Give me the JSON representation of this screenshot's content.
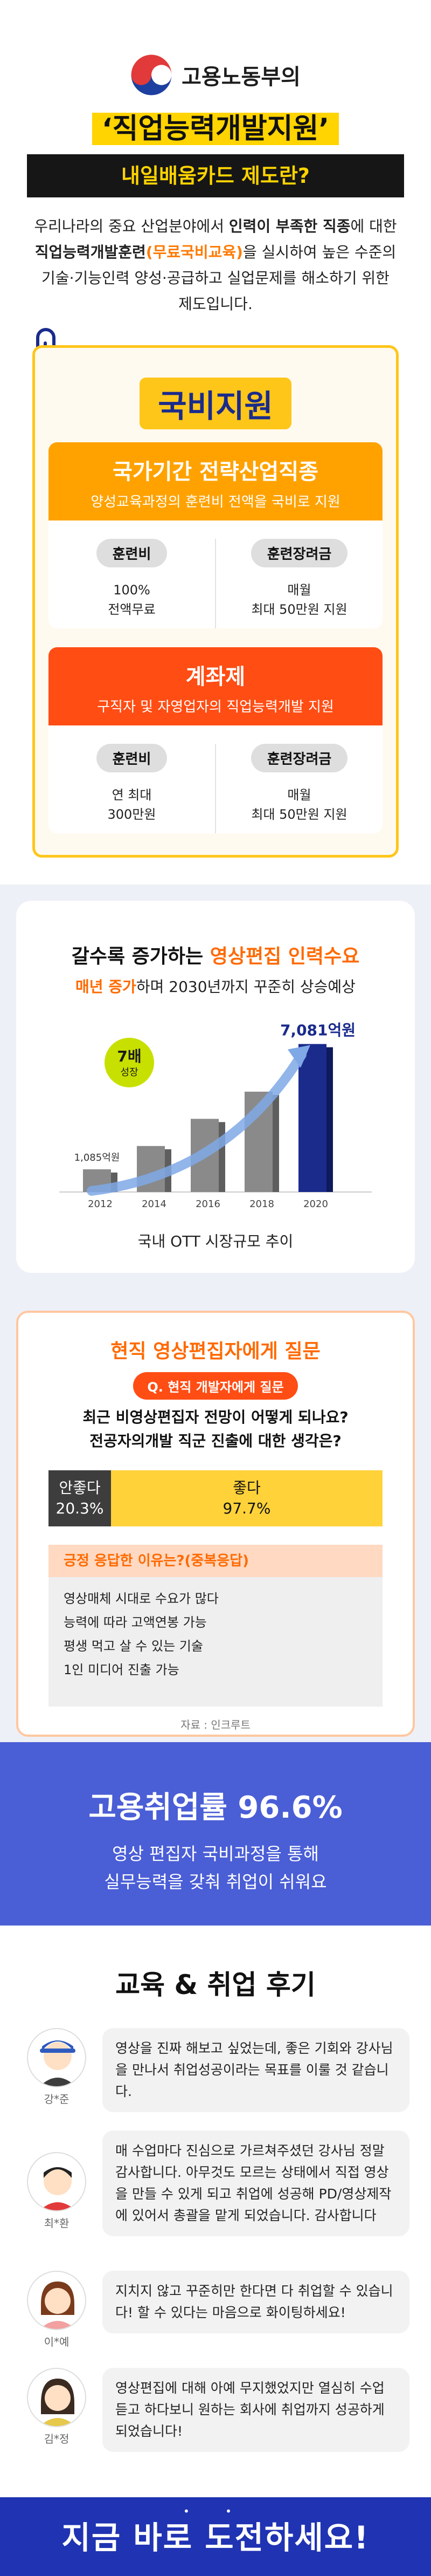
{
  "header": {
    "org_name": "고용노동부의",
    "main_title": "‘직업능력개발지원’",
    "subtitle": "내일배움카드 제도란?",
    "intro_1": "우리나라의 중요 산업분야에서 ",
    "intro_em_1": "인력이 부족한 직종",
    "intro_2": "에 대한 ",
    "intro_em_2": "직업능력개발훈련",
    "intro_accent": "(무료국비교육)",
    "intro_3": "을 실시하여 높은 수준의 기술·기능인력 양성·공급하고 실업문제를 해소하기 위한 제도입니다."
  },
  "funding": {
    "badge": "국비지원",
    "plans": [
      {
        "title": "국가기간 전략산업직종",
        "subtitle": "양성교육과정의 훈련비 전액을 국비로 지원",
        "fee_label": "훈련비",
        "fee_line1": "100%",
        "fee_line2": "전액무료",
        "allowance_label": "훈련장려금",
        "allowance_line1": "매월",
        "allowance_line2": "최대 50만원 지원",
        "color": "#ffa200"
      },
      {
        "title": "계좌제",
        "subtitle": "구직자 및 자영업자의 직업능력개발 지원",
        "fee_label": "훈련비",
        "fee_line1": "연 최대",
        "fee_line2": "300만원",
        "allowance_label": "훈련장려금",
        "allowance_line1": "매월",
        "allowance_line2": "최대 50만원 지원",
        "color": "#ff4d14"
      }
    ]
  },
  "chart_section": {
    "title_1": "갈수록 증가하는 ",
    "title_accent": "영상편집 인력수요",
    "sub_accent": "매년 증가",
    "sub_rest": "하며 2030년까지 꾸준히 상승예상",
    "badge_line1": "7배",
    "badge_line2": "성장",
    "caption": "국내 OTT 시장규모 추이"
  },
  "chart_data": {
    "type": "bar",
    "categories": [
      "2012",
      "2014",
      "2016",
      "2018",
      "2020"
    ],
    "values": [
      1085,
      2200,
      3500,
      4800,
      7081
    ],
    "data_labels": [
      "1,085억원",
      "",
      "",
      "",
      "7,081억원"
    ],
    "title": "",
    "xlabel": "",
    "ylabel": "",
    "ylim": [
      0,
      8000
    ],
    "grid": false,
    "colors": {
      "bar": "#8a8a8a",
      "last_bar": "#1a2b8c",
      "arrow": "#7fa8e6",
      "badge": "#c8e000"
    }
  },
  "survey": {
    "title": "현직 영상편집자에게 질문",
    "q_pill": "Q. 현직 개발자에게 질문",
    "question_1": "최근 비영상편집자 전망이 어떻게 되나요?",
    "question_2": "전공자의개발 직군 진출에 대한 생각은?",
    "no_label": "안좋다",
    "no_value": "20.3%",
    "yes_label": "좋다",
    "yes_value": "97.7%",
    "reason_head": "긍정 응답한 이유는?(중복응답)",
    "reasons": [
      "영상매체 시대로 수요가 많다",
      "능력에 따라 고액연봉 가능",
      "평생 먹고 살 수 있는 기술",
      "1인 미디어 진출 가능"
    ],
    "source": "자료 : 인크루트"
  },
  "employment": {
    "rate": "고용취업률 96.6%",
    "sub_1": "영상 편집자 국비과정을 통해",
    "sub_2": "실무능력을 갖춰 취업이 쉬워요"
  },
  "reviews": {
    "title": "교육 & 취업 후기",
    "items": [
      {
        "name": "강*준",
        "text": "영상을 진짜 해보고 싶었는데, 좋은 기회와 강사님을 만나서 취업성공이라는 목표를 이룰 것 같습니다."
      },
      {
        "name": "최*환",
        "text": "매 수업마다 진심으로 가르쳐주셨던 강사님 정말 감사합니다. 아무것도 모르는 상태에서 직접 영상을 만들 수 있게 되고 취업에 성공해 PD/영상제작에 있어서 총괄을 맡게 되었습니다. 감사합니다"
      },
      {
        "name": "이*예",
        "text": "지치지 않고 꾸준히만 한다면 다 취업할 수 있습니다! 할 수 있다는 마음으로 화이팅하세요!"
      },
      {
        "name": "김*정",
        "text": "영상편집에 대해 아예 무지했었지만 열심히 수업듣고 하다보니 원하는 회사에 취업까지 성공하게 되었습니다!"
      }
    ]
  },
  "footer": {
    "cta": "지금 바로 도전하세요!"
  }
}
